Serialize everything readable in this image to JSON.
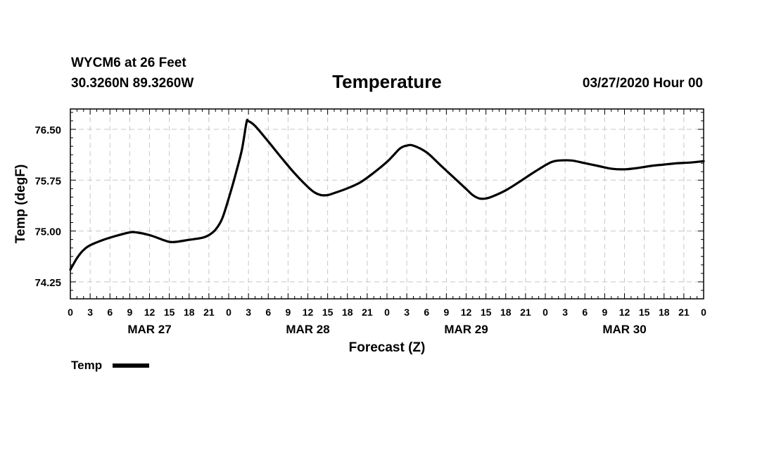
{
  "header": {
    "station": "WYCM6 at 26 Feet",
    "coords": "30.3260N 89.3260W",
    "title": "Temperature",
    "date": "03/27/2020 Hour 00"
  },
  "chart_data": {
    "type": "line",
    "title": "Temperature",
    "xlabel": "Forecast (Z)",
    "ylabel": "Temp (degF)",
    "ylim": [
      74.0,
      76.8
    ],
    "xlim": [
      0,
      96
    ],
    "yticks": [
      74.25,
      75.0,
      75.75,
      76.5
    ],
    "ytick_labels": [
      "74.25",
      "75.00",
      "75.75",
      "76.50"
    ],
    "xtick_labels": [
      "0",
      "3",
      "6",
      "9",
      "12",
      "15",
      "18",
      "21",
      "0",
      "3",
      "6",
      "9",
      "12",
      "15",
      "18",
      "21",
      "0",
      "3",
      "6",
      "9",
      "12",
      "15",
      "18",
      "21",
      "0",
      "3",
      "6",
      "9",
      "12",
      "15",
      "18",
      "21",
      "0"
    ],
    "day_labels": [
      {
        "hour": 12,
        "label": "MAR 27"
      },
      {
        "hour": 36,
        "label": "MAR 28"
      },
      {
        "hour": 60,
        "label": "MAR 29"
      },
      {
        "hour": 84,
        "label": "MAR 30"
      }
    ],
    "grid": true,
    "legend": "bottom-left",
    "series": [
      {
        "name": "Temp",
        "color": "#000000",
        "x": [
          0,
          1,
          2,
          3,
          5,
          7,
          9,
          10,
          12,
          14,
          15,
          16,
          18,
          20,
          21,
          22,
          23,
          24,
          25,
          26,
          26.7,
          27,
          28,
          30,
          32,
          34,
          36,
          37,
          38,
          39,
          40,
          42,
          44,
          46,
          48,
          49,
          50,
          51,
          52,
          54,
          56,
          58,
          60,
          61,
          62,
          63,
          64,
          66,
          68,
          70,
          72,
          73,
          74,
          76,
          78,
          80,
          82,
          84,
          86,
          88,
          90,
          92,
          94,
          96
        ],
        "y": [
          74.43,
          74.6,
          74.72,
          74.79,
          74.87,
          74.93,
          74.98,
          74.98,
          74.94,
          74.87,
          74.84,
          74.84,
          74.87,
          74.9,
          74.94,
          75.02,
          75.18,
          75.48,
          75.82,
          76.2,
          76.6,
          76.62,
          76.55,
          76.32,
          76.08,
          75.85,
          75.65,
          75.57,
          75.53,
          75.53,
          75.56,
          75.63,
          75.72,
          75.86,
          76.02,
          76.12,
          76.22,
          76.26,
          76.26,
          76.16,
          75.98,
          75.8,
          75.62,
          75.53,
          75.48,
          75.48,
          75.51,
          75.6,
          75.72,
          75.85,
          75.97,
          76.02,
          76.04,
          76.04,
          76.0,
          75.96,
          75.92,
          75.91,
          75.93,
          75.96,
          75.98,
          76.0,
          76.01,
          76.03
        ]
      }
    ]
  },
  "legend": {
    "label": "Temp"
  }
}
